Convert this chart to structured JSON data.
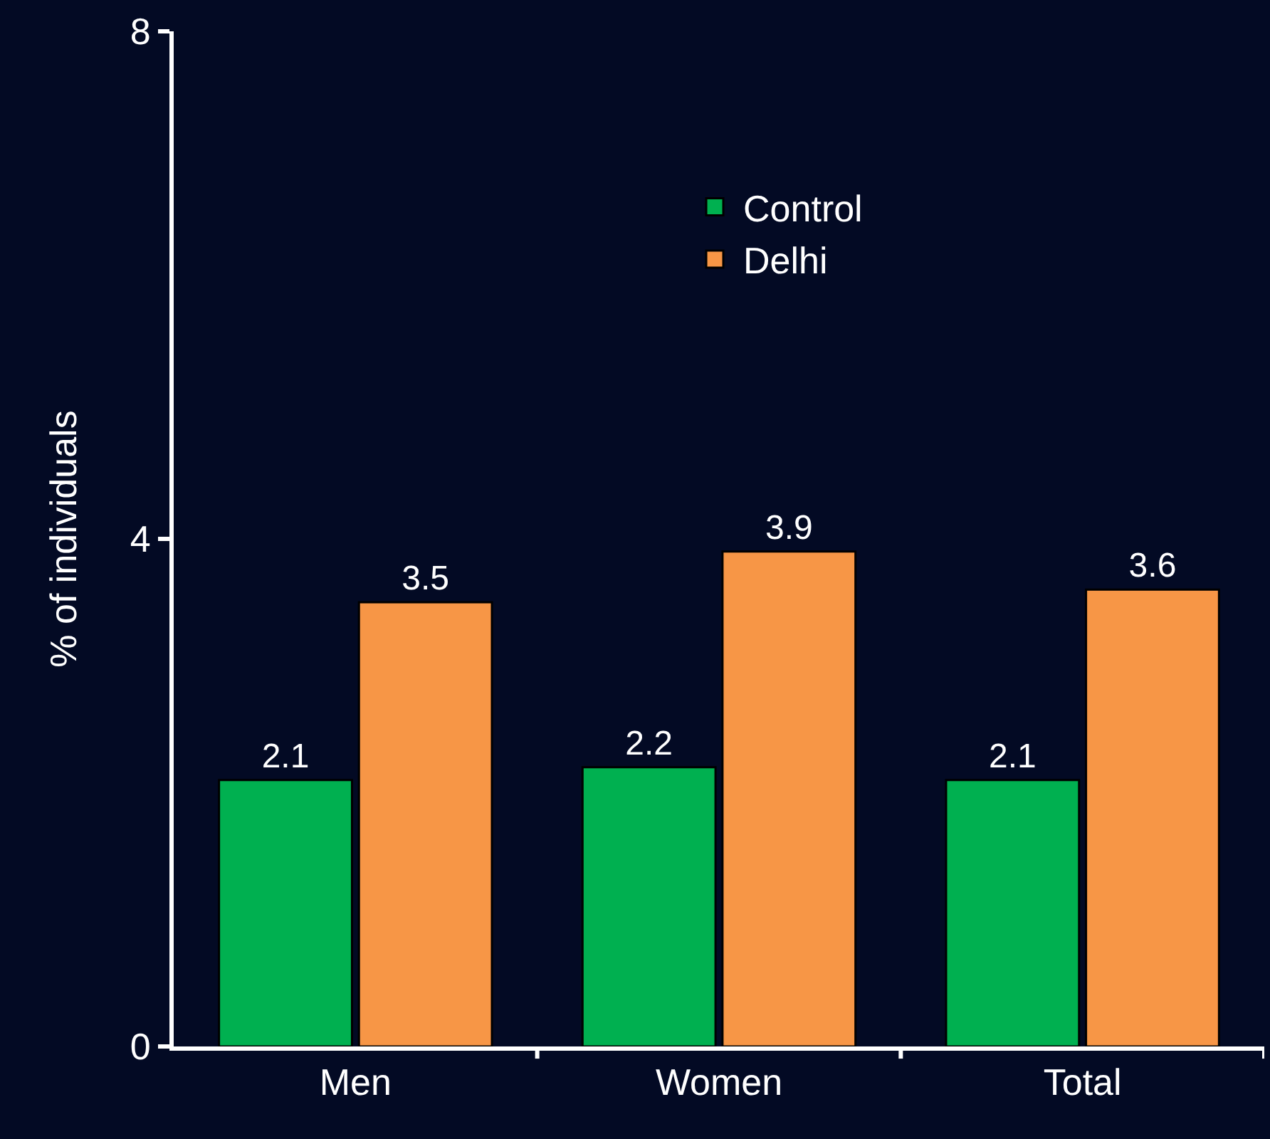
{
  "chart_data": {
    "type": "bar",
    "ylabel": "% of individuals",
    "categories": [
      "Men",
      "Women",
      "Total"
    ],
    "series": [
      {
        "name": "Control",
        "color": "#00b050",
        "values": [
          2.1,
          2.2,
          2.1
        ]
      },
      {
        "name": "Delhi",
        "color": "#f79646",
        "values": [
          3.5,
          3.9,
          3.6
        ]
      }
    ],
    "ylim": [
      0,
      8
    ],
    "yticks": [
      0,
      4,
      8
    ],
    "data_labels": true,
    "grid": false,
    "legend": "top"
  }
}
